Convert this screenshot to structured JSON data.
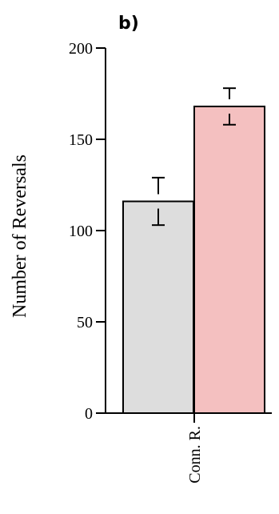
{
  "panel_label": "b)",
  "chart_data": {
    "type": "bar",
    "categories": [
      "Conn. R."
    ],
    "series": [
      {
        "values": [
          116
        ],
        "error": [
          13
        ],
        "color": "#dddddd"
      },
      {
        "values": [
          168
        ],
        "error": [
          10
        ],
        "color": "#f4c0c0"
      }
    ],
    "xlabel": "",
    "ylabel": "Number of Reversals",
    "ylim": [
      0,
      200
    ],
    "yticks": [
      0,
      50,
      100,
      150,
      200
    ],
    "grid": false
  }
}
